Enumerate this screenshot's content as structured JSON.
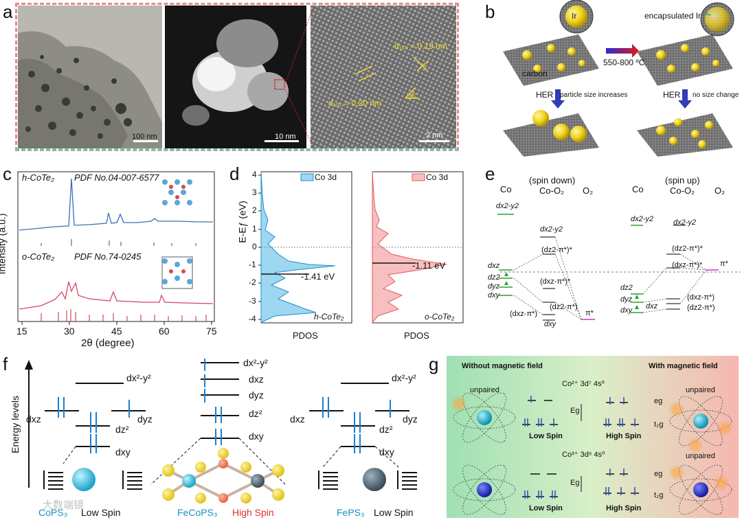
{
  "panels": {
    "a": {
      "label": "a",
      "scale_left": "100 nm",
      "scale_mid": "10 nm",
      "scale_right": "2 nm",
      "d_top": "d₁₁₀ = 0.19 nm",
      "d_bottom": "d₁₀₁ = 0.20 nm"
    },
    "b": {
      "label": "b",
      "ir": "Ir",
      "encapsulated": "encapsulated Ir",
      "carbon": "carbon",
      "temp": "550-800 ºC",
      "her_left": "HER",
      "her_left_note": "particle size increases",
      "her_right": "HER",
      "her_right_note": "no size change"
    },
    "c": {
      "label": "c",
      "h_phase": "h-CoTe₂",
      "h_pdf": "PDF No.04-007-6577",
      "o_phase": "o-CoTe₂",
      "o_pdf": "PDF No.74-0245",
      "ylabel": "Intensity (a.u.)",
      "xlabel": "2θ (degree)",
      "ticks": [
        "15",
        "30",
        "45",
        "60",
        "75"
      ],
      "h_color": "#3a6fb5",
      "o_color": "#d5445e"
    },
    "d": {
      "label": "d",
      "ylabel": "E-Eƒ (eV)",
      "yticks": [
        "4",
        "3",
        "2",
        "1",
        "0",
        "-1",
        "-2",
        "-3",
        "-4"
      ],
      "left_legend": "Co 3d",
      "left_value": "-1.41 eV",
      "left_name": "h-CoTe₂",
      "left_xlabel": "PDOS",
      "right_legend": "Co 3d",
      "right_value": "-1.11 eV",
      "right_name": "o-CoTe₂",
      "right_xlabel": "PDOS",
      "left_color": "#4fb7e6",
      "right_color": "#f08a8a"
    },
    "e": {
      "label": "e",
      "left_co": "Co",
      "left_spin": "(spin down)",
      "left_coo2": "Co-O₂",
      "left_o2": "O₂",
      "right_co": "Co",
      "right_spin": "(spin up)",
      "right_coo2": "Co-O₂",
      "right_o2": "O₂",
      "dx2y2": "dx2-y2",
      "dxz": "dxz",
      "dz2": "dz2",
      "dyz": "dyz",
      "dxy": "dxy",
      "z2_pi": "(dz2-π*)*",
      "xz_pi": "(dxz-π*)*",
      "xz_pi_b": "(dxz-π*)",
      "z2_pi_b": "(dz2-π*)",
      "pi_star": "π*"
    },
    "f": {
      "label": "f",
      "energy": "Energy levels",
      "dx2y2": "dx²-y²",
      "dxz": "dxz",
      "dyz": "dyz",
      "dz2": "dz²",
      "dxy": "dxy",
      "cops3": "CoPS₃",
      "low_spin_left": "Low Spin",
      "fecops3": "FeCoPS₃",
      "high_spin": "High Spin",
      "feps3": "FePS₃",
      "low_spin_right": "Low Spin"
    },
    "g": {
      "label": "g",
      "without": "Without magnetic field",
      "with": "With magnetic field",
      "co2": "Co²⁺ 3d⁷ 4s⁰",
      "co3": "Co³⁺ 3d⁶ 4s⁰",
      "unpaired_top_left": "unpaired",
      "unpaired_top_right": "unpaired",
      "unpaired_bottom_right": "unpaired",
      "eg": "eɡ",
      "t2g": "t₂ɡ",
      "Eg": "Eɡ",
      "low_spin_top": "Low Spin",
      "high_spin_top": "High Spin",
      "low_spin_bottom": "Low Spin",
      "high_spin_bottom": "High Spin"
    }
  },
  "watermark": "大数端镜"
}
